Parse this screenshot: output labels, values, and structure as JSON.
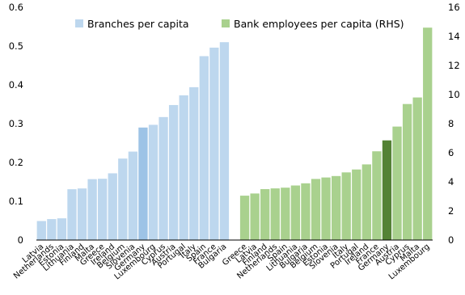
{
  "chart_data": {
    "type": "bar",
    "title": "",
    "left_axis": {
      "label": "",
      "ylim": [
        0,
        0.6
      ],
      "ticks": [
        0,
        0.1,
        0.2,
        0.3,
        0.4,
        0.5,
        0.6
      ]
    },
    "right_axis": {
      "label": "",
      "ylim": [
        0,
        16
      ],
      "ticks": [
        0,
        2,
        4,
        6,
        8,
        10,
        12,
        14,
        16
      ]
    },
    "legend_position": "top",
    "grid": false,
    "series": [
      {
        "name": "Branches per capita",
        "axis": "left",
        "color": "#bdd7ee",
        "highlight_color": "#9dc3e6",
        "highlight": "Germany",
        "categories": [
          "Latvia",
          "Netherlands",
          "Estonia",
          "Lithuania",
          "Finland",
          "Malta",
          "Greece",
          "Ireland",
          "Belgium",
          "Slovenia",
          "Germany",
          "Luxembourg",
          "Cyprus",
          "Austria",
          "Portugal",
          "Italy",
          "Spain",
          "France",
          "Bulgaria"
        ],
        "values": [
          0.049,
          0.054,
          0.056,
          0.131,
          0.133,
          0.157,
          0.158,
          0.172,
          0.21,
          0.228,
          0.29,
          0.297,
          0.317,
          0.348,
          0.373,
          0.394,
          0.474,
          0.496,
          0.51
        ]
      },
      {
        "name": "Bank employees per capita (RHS)",
        "axis": "right",
        "color": "#a9d18e",
        "highlight_color": "#548235",
        "highlight": "Germany",
        "categories": [
          "Greece",
          "Latvia",
          "Finland",
          "Netherlands",
          "Spain",
          "Lithuania",
          "Bulgaria",
          "Belgium",
          "Estonia",
          "Slovenia",
          "Italy",
          "Portugal",
          "Ireland",
          "France",
          "Germany",
          "Austria",
          "Cyprus",
          "Malta",
          "Luxembourg"
        ],
        "values": [
          3.05,
          3.2,
          3.5,
          3.55,
          3.6,
          3.75,
          3.9,
          4.2,
          4.3,
          4.4,
          4.65,
          4.85,
          5.2,
          6.1,
          6.85,
          7.8,
          9.35,
          9.8,
          14.6
        ]
      }
    ]
  }
}
